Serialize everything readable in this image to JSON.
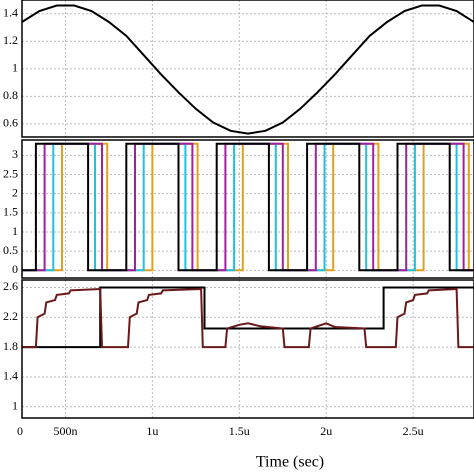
{
  "chart_data": [
    {
      "type": "line",
      "ylim": [
        0.505,
        1.5
      ],
      "yticks": [
        0.6,
        0.8,
        1,
        1.2,
        1.4
      ],
      "xlim": [
        0.25,
        2.85
      ],
      "grid": true,
      "series": [
        {
          "color": "#000000",
          "x": [
            0.25,
            0.35,
            0.45,
            0.55,
            0.65,
            0.75,
            0.85,
            0.95,
            1.05,
            1.15,
            1.25,
            1.35,
            1.45,
            1.55,
            1.65,
            1.75,
            1.85,
            1.95,
            2.05,
            2.15,
            2.25,
            2.35,
            2.45,
            2.55,
            2.65,
            2.75,
            2.85
          ],
          "values": [
            1.34,
            1.42,
            1.46,
            1.46,
            1.42,
            1.34,
            1.24,
            1.1,
            0.96,
            0.83,
            0.71,
            0.61,
            0.55,
            0.53,
            0.55,
            0.61,
            0.71,
            0.83,
            0.96,
            1.1,
            1.24,
            1.34,
            1.42,
            1.46,
            1.46,
            1.42,
            1.34
          ]
        }
      ]
    },
    {
      "type": "line",
      "ylim": [
        -0.2,
        3.4
      ],
      "yticks": [
        0,
        0.5,
        1,
        1.5,
        2,
        2.5,
        3
      ],
      "xlim": [
        0.25,
        2.85
      ],
      "grid": true,
      "series": [
        {
          "color": "#e0a020",
          "x": [
            0.25,
            0.48,
            0.48,
            0.74,
            0.74,
            1.0,
            1.0,
            1.26,
            1.26,
            1.52,
            1.52,
            1.78,
            1.78,
            2.04,
            2.04,
            2.3,
            2.3,
            2.56,
            2.56,
            2.82,
            2.82,
            2.85
          ],
          "values": [
            0,
            0,
            3.3,
            3.3,
            0,
            0,
            3.3,
            3.3,
            0,
            0,
            3.3,
            3.3,
            0,
            0,
            3.3,
            3.3,
            0,
            0,
            3.3,
            3.3,
            0,
            0
          ]
        },
        {
          "color": "#20c0e0",
          "x": [
            0.25,
            0.43,
            0.43,
            0.67,
            0.67,
            0.95,
            0.95,
            1.19,
            1.19,
            1.47,
            1.47,
            1.71,
            1.71,
            1.99,
            1.99,
            2.23,
            2.23,
            2.51,
            2.51,
            2.75,
            2.75,
            2.85
          ],
          "values": [
            0,
            0,
            3.3,
            3.3,
            0,
            0,
            3.3,
            3.3,
            0,
            0,
            3.3,
            3.3,
            0,
            0,
            3.3,
            3.3,
            0,
            0,
            3.3,
            3.3,
            0,
            0
          ]
        },
        {
          "color": "#a020a0",
          "x": [
            0.25,
            0.38,
            0.38,
            0.71,
            0.71,
            0.9,
            0.9,
            1.23,
            1.23,
            1.42,
            1.42,
            1.75,
            1.75,
            1.94,
            1.94,
            2.27,
            2.27,
            2.46,
            2.46,
            2.79,
            2.79,
            2.85
          ],
          "values": [
            0,
            0,
            3.3,
            3.3,
            0,
            0,
            3.3,
            3.3,
            0,
            0,
            3.3,
            3.3,
            0,
            0,
            3.3,
            3.3,
            0,
            0,
            3.3,
            3.3,
            0,
            0
          ]
        },
        {
          "color": "#000000",
          "x": [
            0.25,
            0.33,
            0.33,
            0.63,
            0.63,
            0.85,
            0.85,
            1.15,
            1.15,
            1.37,
            1.37,
            1.67,
            1.67,
            1.89,
            1.89,
            2.19,
            2.19,
            2.41,
            2.41,
            2.71,
            2.71,
            2.85
          ],
          "values": [
            0,
            0,
            3.3,
            3.3,
            0,
            0,
            3.3,
            3.3,
            0,
            0,
            3.3,
            3.3,
            0,
            0,
            3.3,
            3.3,
            0,
            0,
            3.3,
            3.3,
            0,
            0
          ]
        }
      ]
    },
    {
      "type": "line",
      "ylim": [
        0.85,
        2.7
      ],
      "yticks": [
        1,
        1.4,
        1.8,
        2.2,
        2.6
      ],
      "xlim": [
        0.25,
        2.85
      ],
      "grid": true,
      "xticks": [
        0,
        {
          "value": 0.5,
          "label": "500n"
        },
        {
          "value": 1,
          "label": "1u"
        },
        {
          "value": 1.5,
          "label": "1.5u"
        },
        {
          "value": 2,
          "label": "2u"
        },
        {
          "value": 2.5,
          "label": "2.5u"
        }
      ],
      "xlabel": "Time (sec)",
      "series": [
        {
          "color": "#000000",
          "x": [
            0.25,
            0.7,
            0.7,
            1.3,
            1.3,
            2.33,
            2.33,
            2.85
          ],
          "values": [
            1.8,
            1.8,
            2.6,
            2.6,
            2.05,
            2.05,
            2.6,
            2.6
          ]
        },
        {
          "color": "#6a1a1a",
          "x": [
            0.25,
            0.33,
            0.34,
            0.38,
            0.39,
            0.44,
            0.45,
            0.52,
            0.53,
            0.7,
            0.71,
            0.86,
            0.87,
            0.91,
            0.92,
            0.97,
            0.98,
            1.05,
            1.06,
            1.28,
            1.29,
            1.42,
            1.43,
            1.5,
            1.55,
            1.62,
            1.75,
            1.76,
            1.9,
            1.91,
            2.0,
            2.05,
            2.22,
            2.23,
            2.4,
            2.41,
            2.45,
            2.46,
            2.5,
            2.51,
            2.58,
            2.59,
            2.75,
            2.76,
            2.85
          ],
          "values": [
            1.8,
            1.8,
            2.2,
            2.25,
            2.4,
            2.43,
            2.5,
            2.52,
            2.56,
            2.58,
            1.8,
            1.8,
            2.2,
            2.25,
            2.4,
            2.43,
            2.5,
            2.52,
            2.56,
            2.58,
            1.8,
            1.8,
            2.05,
            2.1,
            2.12,
            2.08,
            2.05,
            1.8,
            1.8,
            2.05,
            2.12,
            2.07,
            2.05,
            1.8,
            1.8,
            2.2,
            2.25,
            2.4,
            2.43,
            2.5,
            2.52,
            2.56,
            2.58,
            1.8,
            1.8
          ]
        }
      ]
    }
  ]
}
